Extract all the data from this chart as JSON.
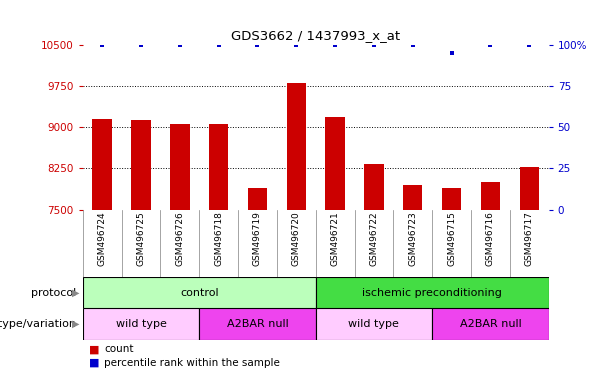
{
  "title": "GDS3662 / 1437993_x_at",
  "samples": [
    "GSM496724",
    "GSM496725",
    "GSM496726",
    "GSM496718",
    "GSM496719",
    "GSM496720",
    "GSM496721",
    "GSM496722",
    "GSM496723",
    "GSM496715",
    "GSM496716",
    "GSM496717"
  ],
  "bar_values": [
    9150,
    9120,
    9060,
    9060,
    7900,
    9800,
    9180,
    8330,
    7950,
    7890,
    8000,
    8270
  ],
  "percentile_values": [
    100,
    100,
    100,
    100,
    100,
    100,
    100,
    100,
    100,
    95,
    100,
    100
  ],
  "bar_color": "#cc0000",
  "dot_color": "#0000cc",
  "ymin": 7500,
  "ymax": 10500,
  "yticks": [
    7500,
    8250,
    9000,
    9750,
    10500
  ],
  "y2min": 0,
  "y2max": 100,
  "y2ticks": [
    0,
    25,
    50,
    75,
    100
  ],
  "protocol_groups": [
    {
      "label": "control",
      "start": 0,
      "end": 6,
      "color": "#bbffbb"
    },
    {
      "label": "ischemic preconditioning",
      "start": 6,
      "end": 12,
      "color": "#44dd44"
    }
  ],
  "genotype_groups": [
    {
      "label": "wild type",
      "start": 0,
      "end": 3,
      "color": "#ffccff"
    },
    {
      "label": "A2BAR null",
      "start": 3,
      "end": 6,
      "color": "#ee44ee"
    },
    {
      "label": "wild type",
      "start": 6,
      "end": 9,
      "color": "#ffccff"
    },
    {
      "label": "A2BAR null",
      "start": 9,
      "end": 12,
      "color": "#ee44ee"
    }
  ],
  "protocol_label": "protocol",
  "genotype_label": "genotype/variation",
  "legend_count_label": "count",
  "legend_percentile_label": "percentile rank within the sample",
  "bar_width": 0.5,
  "background_color": "#ffffff",
  "tick_color_left": "#cc0000",
  "tick_color_right": "#0000cc"
}
